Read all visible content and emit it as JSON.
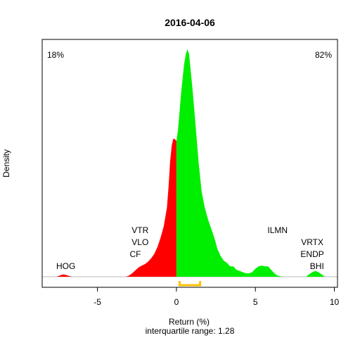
{
  "chart_data": {
    "type": "area",
    "title": "2016-04-06",
    "xlabel": "Return (%)",
    "ylabel": "Density",
    "subtitle": "interquartile range: 1.28",
    "xlim": [
      -8.5,
      10.2
    ],
    "x_ticks": [
      -5,
      0,
      5,
      10
    ],
    "share_negative": "18%",
    "share_positive": "82%",
    "colors": {
      "negative": "#ff0000",
      "positive": "#00ee00",
      "negative_text": "#cc0000",
      "positive_text": "#009900",
      "iqr": "#ffc000"
    },
    "iqr_bracket": [
      0.2,
      1.5
    ],
    "density": {
      "x": [
        -7.6,
        -7.4,
        -7.2,
        -7.0,
        -6.8,
        -6.6,
        -3.2,
        -3.0,
        -2.8,
        -2.6,
        -2.4,
        -2.2,
        -2.0,
        -1.8,
        -1.6,
        -1.4,
        -1.2,
        -1.0,
        -0.8,
        -0.6,
        -0.5,
        -0.4,
        -0.3,
        -0.2,
        -0.1,
        0.0,
        0.1,
        0.2,
        0.3,
        0.4,
        0.5,
        0.6,
        0.7,
        0.8,
        0.9,
        1.0,
        1.2,
        1.4,
        1.6,
        1.8,
        2.0,
        2.2,
        2.4,
        2.6,
        2.8,
        3.0,
        3.2,
        3.4,
        3.6,
        3.8,
        4.0,
        4.2,
        4.4,
        4.6,
        4.8,
        5.0,
        5.2,
        5.4,
        5.6,
        5.8,
        6.0,
        6.2,
        6.4,
        6.6,
        6.8,
        8.2,
        8.4,
        8.6,
        8.8,
        9.0,
        9.2,
        9.4
      ],
      "y": [
        0,
        0.005,
        0.01,
        0.008,
        0.003,
        0,
        0,
        0.005,
        0.015,
        0.028,
        0.04,
        0.048,
        0.055,
        0.065,
        0.08,
        0.1,
        0.13,
        0.17,
        0.22,
        0.3,
        0.39,
        0.5,
        0.57,
        0.6,
        0.6,
        0.59,
        0.64,
        0.72,
        0.8,
        0.87,
        0.93,
        0.97,
        0.99,
        0.97,
        0.9,
        0.83,
        0.67,
        0.5,
        0.37,
        0.3,
        0.25,
        0.21,
        0.17,
        0.12,
        0.09,
        0.07,
        0.06,
        0.045,
        0.045,
        0.03,
        0.025,
        0.02,
        0.015,
        0.015,
        0.02,
        0.035,
        0.045,
        0.048,
        0.045,
        0.045,
        0.03,
        0.015,
        0.005,
        0.002,
        0,
        0,
        0.01,
        0.02,
        0.025,
        0.02,
        0.01,
        0
      ]
    },
    "labels": [
      {
        "text": "HOG",
        "x": -7.0,
        "level": 1
      },
      {
        "text": "VTR",
        "x": -2.3,
        "level": 4
      },
      {
        "text": "VLO",
        "x": -2.3,
        "level": 3
      },
      {
        "text": "CF",
        "x": -2.6,
        "level": 2
      },
      {
        "text": "ILMN",
        "x": 6.4,
        "level": 4
      },
      {
        "text": "VRTX",
        "x": 8.6,
        "level": 3
      },
      {
        "text": "ENDP",
        "x": 8.6,
        "level": 2
      },
      {
        "text": "BHI",
        "x": 8.9,
        "level": 1
      }
    ]
  }
}
